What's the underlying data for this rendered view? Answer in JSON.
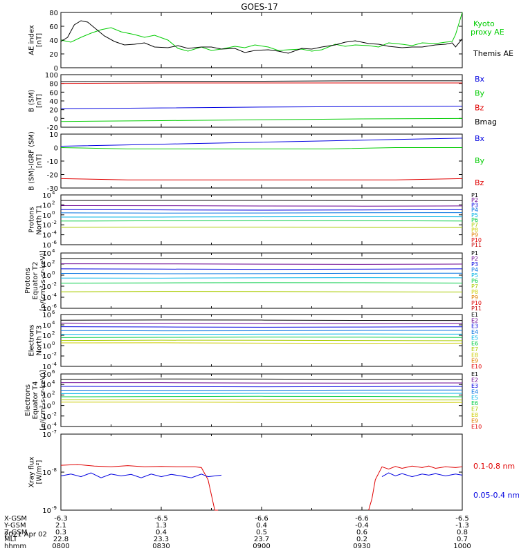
{
  "title": "GOES-17",
  "colors": {
    "red": "#e00000",
    "green": "#00cc00",
    "blue": "#0000e0",
    "black": "#000000",
    "cyan": "#00b4e6",
    "yellow": "#cccc00"
  },
  "x_tick_labels": [
    "0800",
    "0830",
    "0900",
    "0930",
    "1000"
  ],
  "footer": {
    "rows": [
      {
        "label": "X-GSM",
        "values": [
          "-6.3",
          "-6.5",
          "-6.6",
          "-6.6",
          "-6.5"
        ]
      },
      {
        "label": "Y-GSM",
        "values": [
          "2.1",
          "1.3",
          "0.4",
          "-0.4",
          "-1.3"
        ]
      },
      {
        "label": "Z-GSM",
        "values": [
          "0.3",
          "0.4",
          "0.5",
          "0.6",
          "0.8"
        ]
      },
      {
        "label": "MLT",
        "values": [
          "22.8",
          "23.3",
          "23.7",
          "0.2",
          "0.7"
        ]
      },
      {
        "label": "hhmm",
        "values": [
          "0800",
          "0830",
          "0900",
          "0930",
          "1000"
        ]
      }
    ],
    "date": "2021 Apr 02"
  },
  "chart_data": [
    {
      "type": "line",
      "ylabel": "AE index\n[nT]",
      "ylim": [
        0,
        80
      ],
      "y_ticks": [
        "0",
        "20",
        "40",
        "60",
        "80"
      ],
      "x_range_min": [
        0,
        120
      ],
      "series": [
        {
          "name": "Kyoto\nproxy AE",
          "color": "#00cc00",
          "x": [
            0,
            3,
            6,
            9,
            12,
            15,
            18,
            22,
            25,
            28,
            32,
            35,
            38,
            42,
            45,
            48,
            52,
            55,
            58,
            62,
            65,
            68,
            72,
            75,
            78,
            82,
            85,
            88,
            92,
            95,
            98,
            102,
            105,
            108,
            112,
            115,
            117,
            118,
            120
          ],
          "y": [
            40,
            37,
            44,
            50,
            55,
            58,
            52,
            48,
            44,
            47,
            40,
            28,
            24,
            30,
            25,
            27,
            31,
            29,
            33,
            30,
            25,
            26,
            27,
            24,
            26,
            34,
            31,
            33,
            32,
            30,
            36,
            34,
            32,
            36,
            35,
            37,
            38,
            48,
            80
          ]
        },
        {
          "name": "Themis AE",
          "color": "#000000",
          "x": [
            0,
            2,
            4,
            6,
            8,
            10,
            13,
            16,
            19,
            22,
            25,
            28,
            32,
            35,
            38,
            42,
            45,
            48,
            52,
            55,
            58,
            62,
            65,
            68,
            72,
            75,
            78,
            82,
            85,
            88,
            92,
            95,
            98,
            102,
            105,
            108,
            112,
            115,
            117,
            118,
            120
          ],
          "y": [
            38,
            44,
            62,
            68,
            66,
            58,
            46,
            38,
            33,
            34,
            36,
            30,
            29,
            32,
            28,
            30,
            30,
            27,
            28,
            22,
            25,
            26,
            24,
            21,
            28,
            27,
            30,
            33,
            37,
            39,
            35,
            34,
            31,
            29,
            30,
            30,
            33,
            34,
            36,
            30,
            42
          ]
        }
      ]
    },
    {
      "type": "line",
      "ylabel": "B (SM)\n[nT]",
      "ylim": [
        -20,
        100
      ],
      "y_ticks": [
        "-20",
        "0",
        "20",
        "40",
        "60",
        "80",
        "100"
      ],
      "series": [
        {
          "name": "Bx",
          "color": "#0000e0",
          "x": [
            0,
            30,
            60,
            90,
            120
          ],
          "y": [
            22,
            24,
            26,
            27,
            28
          ]
        },
        {
          "name": "By",
          "color": "#00cc00",
          "x": [
            0,
            30,
            60,
            90,
            120
          ],
          "y": [
            -7,
            -5,
            -3,
            -1,
            0
          ]
        },
        {
          "name": "Bz",
          "color": "#e00000",
          "x": [
            0,
            30,
            60,
            90,
            120
          ],
          "y": [
            80,
            81,
            81,
            81,
            81
          ]
        },
        {
          "name": "Bmag",
          "color": "#000000",
          "x": [
            0,
            30,
            60,
            90,
            120
          ],
          "y": [
            84,
            85,
            85,
            86,
            86
          ]
        }
      ]
    },
    {
      "type": "line",
      "ylabel": "B (SM)-IGRF (SM)\n[nT]",
      "ylim": [
        -30,
        10
      ],
      "y_ticks": [
        "-30",
        "-20",
        "-10",
        "0",
        "10"
      ],
      "series": [
        {
          "name": "Bx",
          "color": "#0000e0",
          "x": [
            0,
            20,
            40,
            60,
            80,
            100,
            120
          ],
          "y": [
            1,
            2,
            3,
            4,
            5,
            6,
            7
          ]
        },
        {
          "name": "By",
          "color": "#00cc00",
          "x": [
            0,
            20,
            40,
            60,
            80,
            100,
            120
          ],
          "y": [
            0,
            -1,
            -1,
            -1,
            -1,
            0,
            0
          ]
        },
        {
          "name": "Bz",
          "color": "#e00000",
          "x": [
            0,
            20,
            40,
            60,
            80,
            100,
            120
          ],
          "y": [
            -23,
            -24,
            -24,
            -24,
            -24,
            -24,
            -23
          ]
        }
      ]
    },
    {
      "type": "line",
      "log": true,
      "ylabel": "Protons\nNorth T1",
      "ylim_exp": [
        -6,
        4
      ],
      "y_ticks": [
        "10^-6",
        "10^-4",
        "10^-2",
        "10^0",
        "10^2",
        "10^4"
      ],
      "series_names": [
        "P1",
        "P2",
        "P3",
        "P4",
        "P5",
        "P6",
        "P7",
        "P8",
        "P9",
        "P10",
        "P11"
      ],
      "series_colors": [
        "#000000",
        "#6a0090",
        "#0000e0",
        "#0070e0",
        "#00b4e6",
        "#00cc44",
        "#aacc00",
        "#cccc00",
        "#e08000",
        "#e00000",
        "#c80000"
      ],
      "levels": [
        2.9,
        1.8,
        1.0,
        0.4,
        -0.4,
        -1.2,
        -2.5
      ]
    },
    {
      "type": "line",
      "log": true,
      "ylabel": "Protons\nEquator T2\n[p/(cm²-s-sr-keV)]",
      "ylim_exp": [
        -6,
        4
      ],
      "y_ticks": [
        "10^-6",
        "10^-4",
        "10^-2",
        "10^0",
        "10^2",
        "10^4"
      ],
      "series_names": [
        "P1",
        "P2",
        "P3",
        "P4",
        "P5",
        "P6",
        "P7",
        "P8",
        "P9",
        "P10",
        "P11"
      ],
      "levels": [
        3.0,
        2.0,
        1.1,
        0.3,
        -0.5,
        -1.4,
        -3.0
      ]
    },
    {
      "type": "line",
      "log": true,
      "ylabel": "Electrons\nNorth T3",
      "ylim_exp": [
        -4,
        6
      ],
      "y_ticks": [
        "10^-4",
        "10^-2",
        "10^0",
        "10^2",
        "10^4",
        "10^6"
      ],
      "series_names": [
        "E1",
        "E2",
        "E3",
        "E4",
        "E5",
        "E6",
        "E7",
        "E8",
        "E9",
        "E10"
      ],
      "series_colors": [
        "#000000",
        "#6a0090",
        "#0000e0",
        "#0070e0",
        "#00b4e6",
        "#00cc44",
        "#aacc00",
        "#cccc00",
        "#e08000",
        "#e00000"
      ],
      "levels": [
        4.9,
        4.3,
        3.6,
        2.9,
        2.2,
        1.6,
        1.0,
        0.5
      ]
    },
    {
      "type": "line",
      "log": true,
      "ylabel": "Electrons\nEquator T4\n[e/(cm²-s-sr-keV)]",
      "ylim_exp": [
        -4,
        6
      ],
      "y_ticks": [
        "10^-4",
        "10^-2",
        "10^0",
        "10^2",
        "10^4",
        "10^6"
      ],
      "series_names": [
        "E1",
        "E2",
        "E3",
        "E4",
        "E5",
        "E6",
        "E7",
        "E8",
        "E9",
        "E10"
      ],
      "levels": [
        5.0,
        4.3,
        3.6,
        2.9,
        2.3,
        1.7,
        1.1,
        0.6
      ]
    },
    {
      "type": "line",
      "log": true,
      "ylabel": "Xray flux\n[W/m²]",
      "ylim_exp": [
        -9,
        -7
      ],
      "y_ticks": [
        "10^-9",
        "10^-8",
        "10^-7"
      ],
      "series": [
        {
          "name": "0.1-0.8 nm",
          "color": "#e00000",
          "x": [
            0,
            5,
            10,
            15,
            20,
            25,
            30,
            35,
            40,
            42,
            44,
            45,
            46,
            47,
            92,
            93,
            94,
            96,
            98,
            100,
            102,
            105,
            108,
            110,
            112,
            115,
            118,
            120
          ],
          "y_exp": [
            -7.82,
            -7.8,
            -7.84,
            -7.86,
            -7.83,
            -7.86,
            -7.85,
            -7.86,
            -7.86,
            -7.88,
            -8.2,
            -8.6,
            -9.0,
            -9.2,
            -9.2,
            -8.7,
            -8.2,
            -7.86,
            -7.92,
            -7.85,
            -7.9,
            -7.84,
            -7.88,
            -7.84,
            -7.9,
            -7.86,
            -7.88,
            -7.86
          ]
        },
        {
          "name": "0.05-0.4 nm",
          "color": "#0000e0",
          "x": [
            0,
            3,
            6,
            9,
            12,
            15,
            18,
            21,
            24,
            27,
            30,
            33,
            36,
            39,
            42,
            44,
            46,
            48,
            96,
            98,
            100,
            102,
            105,
            108,
            110,
            112,
            115,
            118,
            120
          ],
          "y_exp": [
            -8.1,
            -8.05,
            -8.12,
            -8.02,
            -8.15,
            -8.05,
            -8.1,
            -8.06,
            -8.15,
            -8.05,
            -8.12,
            -8.06,
            -8.1,
            -8.15,
            -8.05,
            -8.12,
            -8.1,
            -8.08,
            -8.12,
            -8.02,
            -8.1,
            -8.04,
            -8.12,
            -8.05,
            -8.08,
            -8.04,
            -8.1,
            -8.05,
            -8.08
          ]
        }
      ]
    }
  ]
}
